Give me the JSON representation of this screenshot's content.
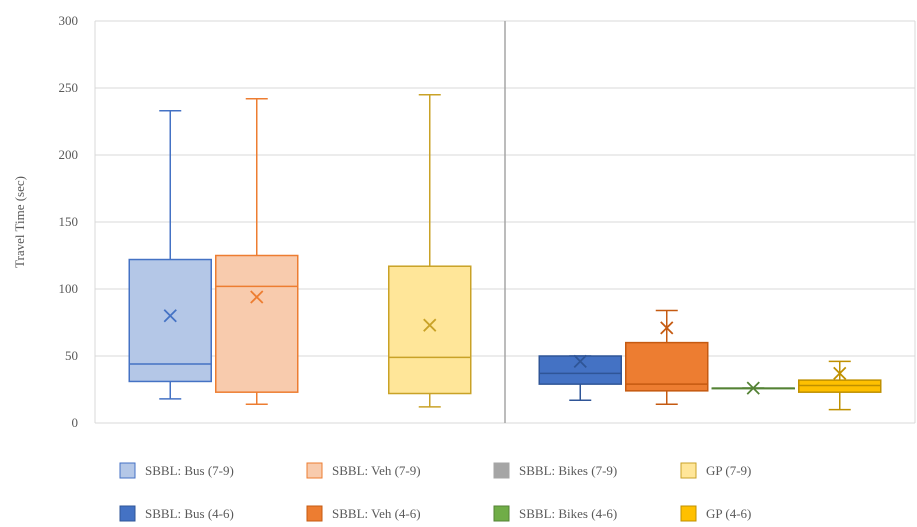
{
  "chart_data": {
    "type": "box",
    "title": "",
    "xlabel": "",
    "ylabel": "Travel Time (sec)",
    "ylim": [
      0,
      300
    ],
    "yticks": [
      0,
      50,
      100,
      150,
      200,
      250,
      300
    ],
    "grid": true,
    "legend_position": "bottom",
    "groups": [
      "7-9",
      "4-6"
    ],
    "series": [
      {
        "name": "SBBL: Bus (7-9)",
        "group": "7-9",
        "color_fill": "#b4c7e7",
        "color_line": "#4472c4",
        "min": 18,
        "q1": 31,
        "median": 44,
        "q3": 122,
        "max": 233,
        "mean": 80
      },
      {
        "name": "SBBL: Veh (7-9)",
        "group": "7-9",
        "color_fill": "#f8cbad",
        "color_line": "#ed7d31",
        "min": 14,
        "q1": 23,
        "median": 102,
        "q3": 125,
        "max": 242,
        "mean": 94
      },
      {
        "name": "SBBL: Bikes (7-9)",
        "group": "7-9",
        "color_fill": "#a5a5a5",
        "color_line": "#a5a5a5",
        "empty": true
      },
      {
        "name": "GP (7-9)",
        "group": "7-9",
        "color_fill": "#ffe699",
        "color_line": "#c9a227",
        "min": 12,
        "q1": 22,
        "median": 49,
        "q3": 117,
        "max": 245,
        "mean": 73
      },
      {
        "name": "SBBL: Bus (4-6)",
        "group": "4-6",
        "color_fill": "#4472c4",
        "color_line": "#2f5597",
        "min": 17,
        "q1": 29,
        "median": 37,
        "q3": 50,
        "max": 50,
        "mean": 46
      },
      {
        "name": "SBBL: Veh (4-6)",
        "group": "4-6",
        "color_fill": "#ed7d31",
        "color_line": "#c55a11",
        "min": 14,
        "q1": 24,
        "median": 29,
        "q3": 60,
        "max": 84,
        "mean": 71
      },
      {
        "name": "SBBL: Bikes (4-6)",
        "group": "4-6",
        "color_fill": "#70ad47",
        "color_line": "#548235",
        "min": 26,
        "q1": 26,
        "median": 26,
        "q3": 26,
        "max": 26,
        "mean": 26
      },
      {
        "name": "GP (4-6)",
        "group": "4-6",
        "color_fill": "#ffc000",
        "color_line": "#bf9000",
        "min": 10,
        "q1": 23,
        "median": 28,
        "q3": 32,
        "max": 46,
        "mean": 37
      }
    ]
  }
}
